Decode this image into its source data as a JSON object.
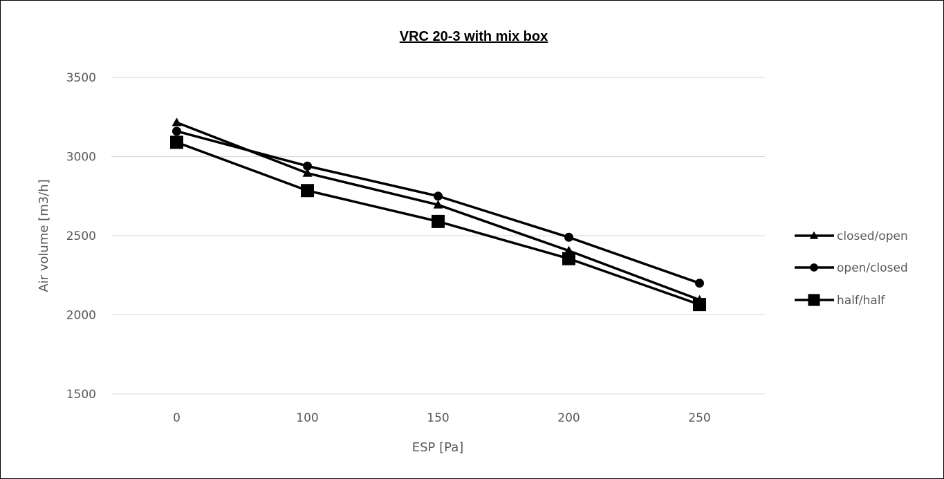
{
  "chart_data": {
    "type": "line",
    "title": "VRC 20-3 with mix box",
    "xlabel": "ESP [Pa]",
    "ylabel": "Air volume [m3/h]",
    "categories": [
      "0",
      "100",
      "150",
      "200",
      "250"
    ],
    "ylim": [
      1500,
      3500
    ],
    "yticks": [
      "1500",
      "2000",
      "2500",
      "3000",
      "3500"
    ],
    "grid": "horizontal",
    "legend_position": "right",
    "series": [
      {
        "name": "closed/open",
        "marker": "triangle",
        "color": "#000000",
        "values": [
          3215,
          2895,
          2695,
          2405,
          2095
        ]
      },
      {
        "name": "open/closed",
        "marker": "circle",
        "color": "#000000",
        "values": [
          3160,
          2940,
          2750,
          2490,
          2200
        ]
      },
      {
        "name": "half/half",
        "marker": "square",
        "color": "#000000",
        "values": [
          3090,
          2785,
          2590,
          2355,
          2065
        ]
      }
    ]
  }
}
